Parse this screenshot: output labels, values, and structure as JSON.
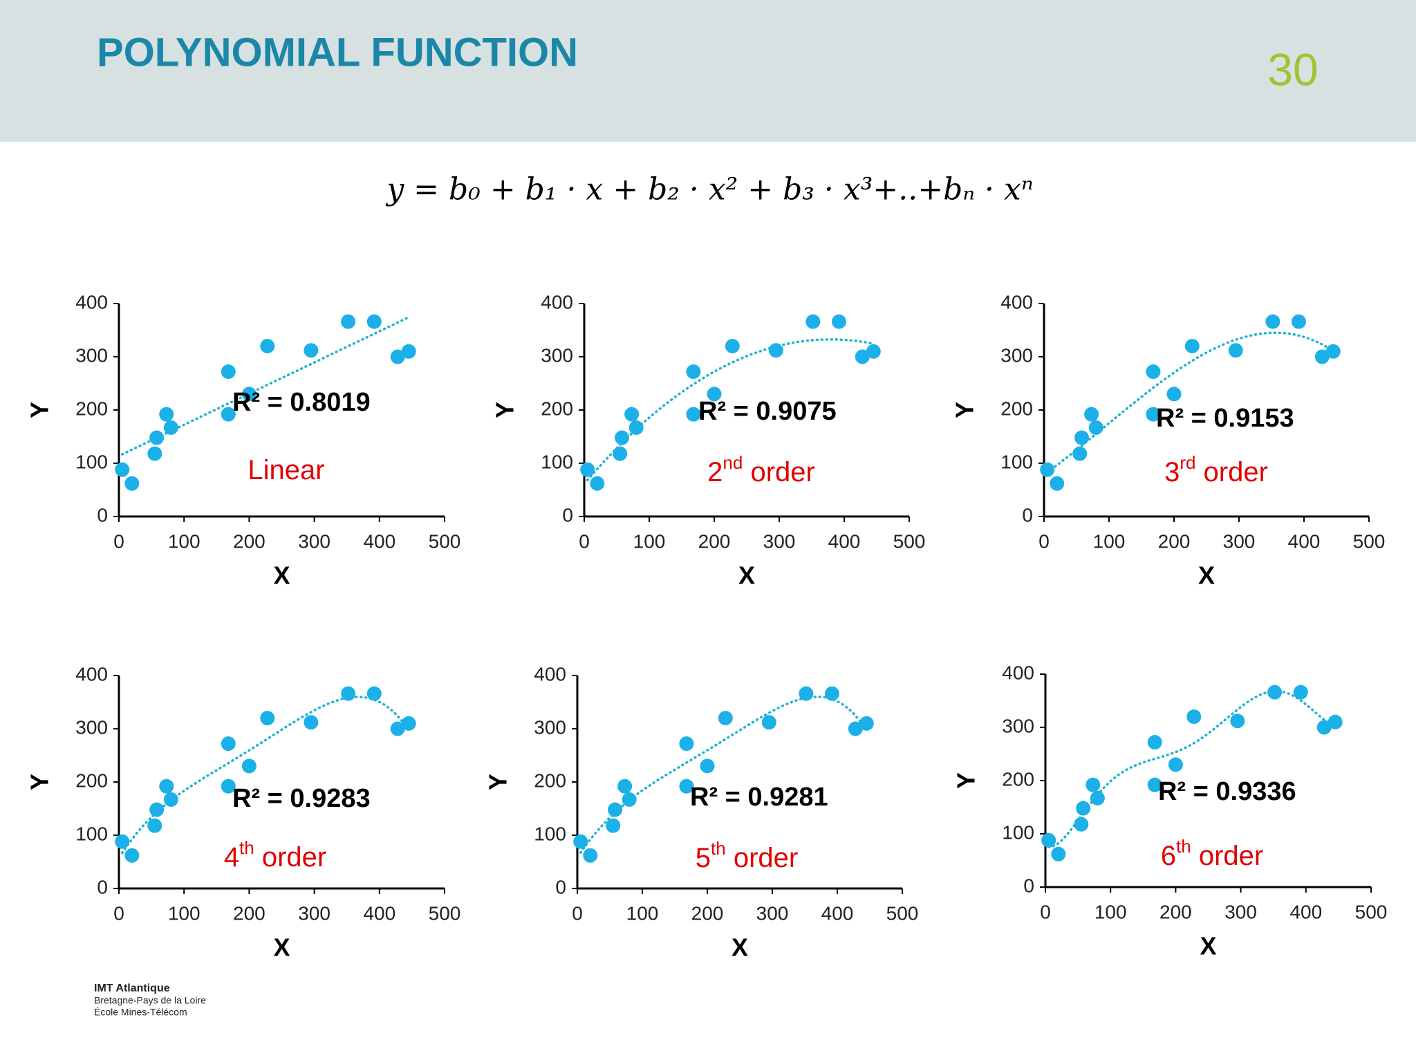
{
  "title": "POLYNOMIAL FUNCTION",
  "page_number": "30",
  "formula": "y = b₀ + b₁ · x + b₂ · x² + b₃ · x³+..+bₙ · xⁿ",
  "footer": [
    "IMT Atlantique",
    "Bretagne-Pays de la Loire",
    "École Mines-Télécom"
  ],
  "chart_data": [
    {
      "type": "scatter",
      "x": [
        5,
        20,
        55,
        58,
        73,
        80,
        168,
        168,
        200,
        228,
        295,
        352,
        392,
        428,
        445
      ],
      "values": [
        88,
        62,
        118,
        148,
        192,
        167,
        272,
        192,
        230,
        320,
        312,
        366,
        366,
        300,
        310
      ],
      "color": "#1cb0e8",
      "xlim": [
        0,
        500
      ],
      "ylim": [
        0,
        400
      ],
      "xticks": [
        0,
        100,
        200,
        300,
        400,
        500
      ],
      "yticks": [
        0,
        100,
        200,
        300,
        400
      ],
      "x_label": "X",
      "y_label": "Y",
      "r2_label": "R² = 0.8019",
      "trendline": {
        "type": "polynomial",
        "order": 1,
        "color": "#1fb3cf"
      },
      "model_label": {
        "text": "Linear"
      }
    },
    {
      "type": "scatter",
      "x": [
        5,
        20,
        55,
        58,
        73,
        80,
        168,
        168,
        200,
        228,
        295,
        352,
        392,
        428,
        445
      ],
      "values": [
        88,
        62,
        118,
        148,
        192,
        167,
        272,
        192,
        230,
        320,
        312,
        366,
        366,
        300,
        310
      ],
      "color": "#1cb0e8",
      "xlim": [
        0,
        500
      ],
      "ylim": [
        0,
        400
      ],
      "xticks": [
        0,
        100,
        200,
        300,
        400,
        500
      ],
      "yticks": [
        0,
        100,
        200,
        300,
        400
      ],
      "x_label": "X",
      "y_label": "Y",
      "r2_label": "R² = 0.9075",
      "trendline": {
        "type": "polynomial",
        "order": 2,
        "color": "#1fb3cf"
      },
      "model_label": {
        "text": "2",
        "sup": "nd",
        "rest": " order"
      }
    },
    {
      "type": "scatter",
      "x": [
        5,
        20,
        55,
        58,
        73,
        80,
        168,
        168,
        200,
        228,
        295,
        352,
        392,
        428,
        445
      ],
      "values": [
        88,
        62,
        118,
        148,
        192,
        167,
        272,
        192,
        230,
        320,
        312,
        366,
        366,
        300,
        310
      ],
      "color": "#1cb0e8",
      "xlim": [
        0,
        500
      ],
      "ylim": [
        0,
        400
      ],
      "xticks": [
        0,
        100,
        200,
        300,
        400,
        500
      ],
      "yticks": [
        0,
        100,
        200,
        300,
        400
      ],
      "x_label": "X",
      "y_label": "Y",
      "r2_label": "R² = 0.9153",
      "trendline": {
        "type": "polynomial",
        "order": 3,
        "color": "#1fb3cf"
      },
      "model_label": {
        "text": "3",
        "sup": "rd",
        "rest": " order"
      }
    },
    {
      "type": "scatter",
      "x": [
        5,
        20,
        55,
        58,
        73,
        80,
        168,
        168,
        200,
        228,
        295,
        352,
        392,
        428,
        445
      ],
      "values": [
        88,
        62,
        118,
        148,
        192,
        167,
        272,
        192,
        230,
        320,
        312,
        366,
        366,
        300,
        310
      ],
      "color": "#1cb0e8",
      "xlim": [
        0,
        500
      ],
      "ylim": [
        0,
        400
      ],
      "xticks": [
        0,
        100,
        200,
        300,
        400,
        500
      ],
      "yticks": [
        0,
        100,
        200,
        300,
        400
      ],
      "x_label": "X",
      "y_label": "Y",
      "r2_label": "R² = 0.9283",
      "trendline": {
        "type": "polynomial",
        "order": 4,
        "color": "#1fb3cf"
      },
      "model_label": {
        "text": "4",
        "sup": "th",
        "rest": " order"
      }
    },
    {
      "type": "scatter",
      "x": [
        5,
        20,
        55,
        58,
        73,
        80,
        168,
        168,
        200,
        228,
        295,
        352,
        392,
        428,
        445
      ],
      "values": [
        88,
        62,
        118,
        148,
        192,
        167,
        272,
        192,
        230,
        320,
        312,
        366,
        366,
        300,
        310
      ],
      "color": "#1cb0e8",
      "xlim": [
        0,
        500
      ],
      "ylim": [
        0,
        400
      ],
      "xticks": [
        0,
        100,
        200,
        300,
        400,
        500
      ],
      "yticks": [
        0,
        100,
        200,
        300,
        400
      ],
      "x_label": "X",
      "y_label": "Y",
      "r2_label": "R² = 0.9281",
      "trendline": {
        "type": "polynomial",
        "order": 5,
        "color": "#1fb3cf"
      },
      "model_label": {
        "text": "5",
        "sup": "th",
        "rest": " order"
      }
    },
    {
      "type": "scatter",
      "x": [
        5,
        20,
        55,
        58,
        73,
        80,
        168,
        168,
        200,
        228,
        295,
        352,
        392,
        428,
        445
      ],
      "values": [
        88,
        62,
        118,
        148,
        192,
        167,
        272,
        192,
        230,
        320,
        312,
        366,
        366,
        300,
        310
      ],
      "color": "#1cb0e8",
      "xlim": [
        0,
        500
      ],
      "ylim": [
        0,
        400
      ],
      "xticks": [
        0,
        100,
        200,
        300,
        400,
        500
      ],
      "yticks": [
        0,
        100,
        200,
        300,
        400
      ],
      "x_label": "X",
      "y_label": "Y",
      "r2_label": "R² = 0.9336",
      "trendline": {
        "type": "polynomial",
        "order": 6,
        "color": "#1fb3cf"
      },
      "model_label": {
        "text": "6",
        "sup": "th",
        "rest": " order"
      }
    }
  ]
}
